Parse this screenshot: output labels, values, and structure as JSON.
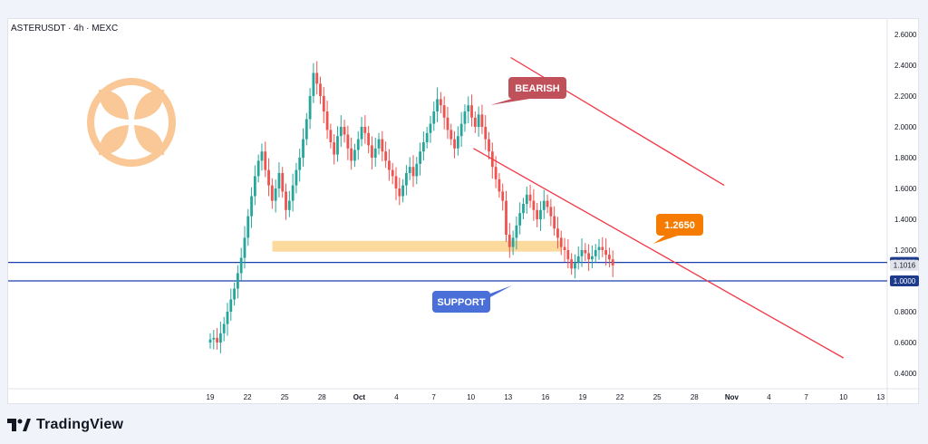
{
  "header": {
    "symbol_line": "ASTERUSDT · 4h · MEXC"
  },
  "footer": {
    "brand": "TradingView"
  },
  "colors": {
    "up": "#26a69a",
    "down": "#ef5350",
    "trendline": "#f23645",
    "support_line": "#1e40af",
    "zone": "#fbd38d",
    "bearish_label": "#c0505a",
    "support_label": "#4a6fd8",
    "price_label": "#f57c00",
    "logo": "#f9c896"
  },
  "chart_data": {
    "type": "candlestick",
    "timeframe": "4h",
    "ylim": [
      0.3,
      2.7
    ],
    "y_ticks": [
      "2.6000",
      "2.4000",
      "2.2000",
      "2.0000",
      "1.8000",
      "1.6000",
      "1.4000",
      "1.2000",
      "0.8000",
      "0.6000",
      "0.4000"
    ],
    "x_ticks": [
      "19",
      "22",
      "25",
      "28",
      "Oct",
      "4",
      "7",
      "10",
      "13",
      "16",
      "19",
      "22",
      "25",
      "28",
      "Nov",
      "4",
      "7",
      "10",
      "13"
    ],
    "price_labels": [
      {
        "value": 1.12,
        "text": "1.1200",
        "style": "dark"
      },
      {
        "value": 1.1016,
        "text": "1.1016",
        "style": "light"
      },
      {
        "value": 1.0,
        "text": "1.0000",
        "style": "dark"
      }
    ],
    "horizontal_lines": [
      {
        "value": 1.12,
        "name": "resistance-1-12"
      },
      {
        "value": 1.0,
        "name": "support-1-00"
      }
    ],
    "zone": {
      "low": 1.19,
      "high": 1.26,
      "start_day": 5.0,
      "end_day": 28.3
    },
    "trendlines": [
      {
        "name": "upper-trendline",
        "from": [
          24.2,
          2.45
        ],
        "to": [
          41.4,
          1.62
        ]
      },
      {
        "name": "lower-trendline",
        "from": [
          21.2,
          1.86
        ],
        "to": [
          51.0,
          0.5
        ]
      }
    ],
    "annotations": [
      {
        "name": "bearish-label",
        "text": "BEARISH"
      },
      {
        "name": "support-label",
        "text": "SUPPORT"
      },
      {
        "name": "price-callout",
        "text": "1.2650"
      }
    ],
    "candles_close": [
      0.62,
      0.63,
      0.6,
      0.66,
      0.72,
      0.8,
      0.88,
      0.95,
      1.05,
      1.15,
      1.28,
      1.42,
      1.55,
      1.68,
      1.78,
      1.84,
      1.72,
      1.62,
      1.52,
      1.6,
      1.7,
      1.58,
      1.46,
      1.52,
      1.62,
      1.72,
      1.8,
      1.92,
      2.05,
      2.2,
      2.35,
      2.28,
      2.2,
      2.1,
      1.98,
      1.9,
      1.82,
      1.94,
      2.0,
      1.95,
      1.86,
      1.78,
      1.85,
      1.92,
      2.0,
      1.96,
      1.88,
      1.8,
      1.86,
      1.92,
      1.84,
      1.78,
      1.72,
      1.68,
      1.6,
      1.55,
      1.62,
      1.7,
      1.74,
      1.68,
      1.76,
      1.84,
      1.9,
      1.96,
      2.02,
      2.1,
      2.18,
      2.14,
      2.06,
      1.98,
      1.92,
      1.86,
      1.94,
      2.02,
      2.1,
      2.14,
      2.06,
      2.0,
      2.08,
      2.0,
      1.92,
      1.84,
      1.74,
      1.66,
      1.58,
      1.52,
      1.3,
      1.22,
      1.28,
      1.36,
      1.44,
      1.5,
      1.56,
      1.52,
      1.46,
      1.4,
      1.46,
      1.52,
      1.48,
      1.42,
      1.34,
      1.28,
      1.22,
      1.2,
      1.14,
      1.08,
      1.12,
      1.16,
      1.2,
      1.18,
      1.14,
      1.16,
      1.2,
      1.22,
      1.2,
      1.17,
      1.14,
      1.1
    ]
  }
}
